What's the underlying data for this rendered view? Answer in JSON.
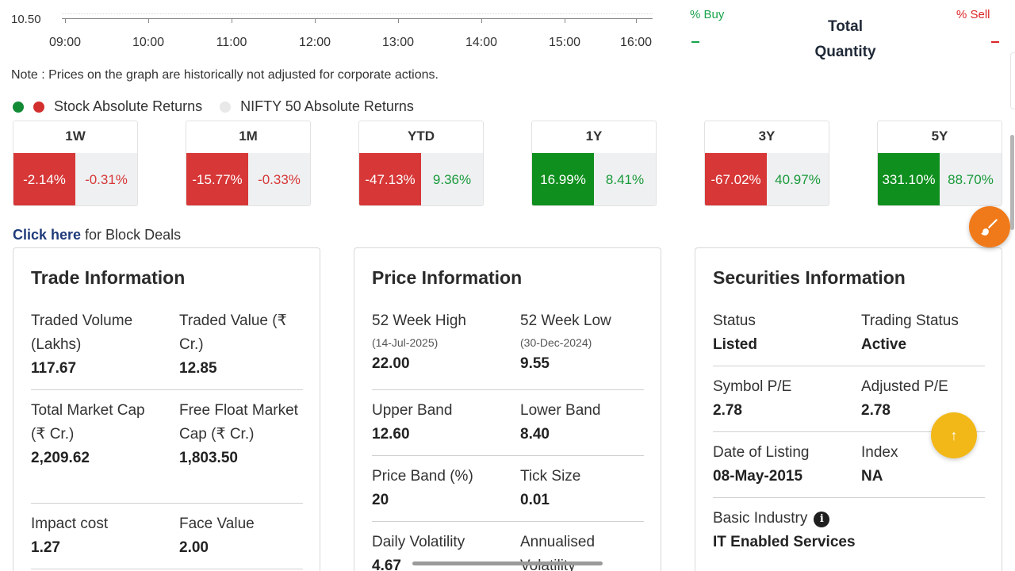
{
  "chart_axis": {
    "y_tick": "10.50",
    "x_ticks": [
      "09:00",
      "10:00",
      "11:00",
      "12:00",
      "13:00",
      "14:00",
      "15:00",
      "16:00"
    ]
  },
  "order_book": {
    "buy_label": "% Buy",
    "sell_label": "% Sell",
    "total_quantity_line1": "Total",
    "total_quantity_line2": "Quantity",
    "buy_value": "-",
    "sell_value": "-"
  },
  "note": "Note : Prices on the graph are historically not adjusted for corporate actions.",
  "legend": {
    "stock": "Stock Absolute Returns",
    "nifty": "NIFTY 50 Absolute Returns"
  },
  "returns": [
    {
      "period": "1W",
      "stock": "-2.14%",
      "stock_dir": "neg",
      "nifty": "-0.31%",
      "nifty_dir": "neg"
    },
    {
      "period": "1M",
      "stock": "-15.77%",
      "stock_dir": "neg",
      "nifty": "-0.33%",
      "nifty_dir": "neg"
    },
    {
      "period": "YTD",
      "stock": "-47.13%",
      "stock_dir": "neg",
      "nifty": "9.36%",
      "nifty_dir": "pos"
    },
    {
      "period": "1Y",
      "stock": "16.99%",
      "stock_dir": "pos",
      "nifty": "8.41%",
      "nifty_dir": "pos"
    },
    {
      "period": "3Y",
      "stock": "-67.02%",
      "stock_dir": "neg",
      "nifty": "40.97%",
      "nifty_dir": "pos"
    },
    {
      "period": "5Y",
      "stock": "331.10%",
      "stock_dir": "pos",
      "nifty": "88.70%",
      "nifty_dir": "pos"
    }
  ],
  "block_deals": {
    "link": "Click here",
    "text": " for Block Deals"
  },
  "trade_info": {
    "title": "Trade Information",
    "traded_volume_label": "Traded Volume (Lakhs)",
    "traded_volume_value": "117.67",
    "traded_value_label": "Traded Value (₹ Cr.)",
    "traded_value_value": "12.85",
    "total_mcap_label": "Total Market Cap (₹ Cr.)",
    "total_mcap_value": "2,209.62",
    "ff_mcap_label": "Free Float Market Cap (₹ Cr.)",
    "ff_mcap_value": "1,803.50",
    "impact_cost_label": "Impact cost",
    "impact_cost_value": "1.27",
    "face_value_label": "Face Value",
    "face_value_value": "2.00"
  },
  "price_info": {
    "title": "Price Information",
    "high_label": "52 Week High",
    "high_date": "(14-Jul-2025)",
    "high_value": "22.00",
    "low_label": "52 Week Low",
    "low_date": "(30-Dec-2024)",
    "low_value": "9.55",
    "upper_band_label": "Upper Band",
    "upper_band_value": "12.60",
    "lower_band_label": "Lower Band",
    "lower_band_value": "8.40",
    "price_band_label": "Price Band (%)",
    "price_band_value": "20",
    "tick_size_label": "Tick Size",
    "tick_size_value": "0.01",
    "daily_vol_label": "Daily Volatility",
    "daily_vol_value": "4.67",
    "annual_vol_label": "Annualised Volatility"
  },
  "securities_info": {
    "title": "Securities Information",
    "status_label": "Status",
    "status_value": "Listed",
    "trading_status_label": "Trading Status",
    "trading_status_value": "Active",
    "symbol_pe_label": "Symbol P/E",
    "symbol_pe_value": "2.78",
    "adjusted_pe_label": "Adjusted P/E",
    "adjusted_pe_value": "2.78",
    "listing_date_label": "Date of Listing",
    "listing_date_value": "08-May-2015",
    "index_label": "Index",
    "index_value": "NA",
    "basic_industry_label": "Basic Industry",
    "basic_industry_value": "IT Enabled Services",
    "info_icon_glyph": "i"
  },
  "floating": {
    "brush_icon": "brush-icon",
    "scroll_top_glyph": "↑"
  }
}
